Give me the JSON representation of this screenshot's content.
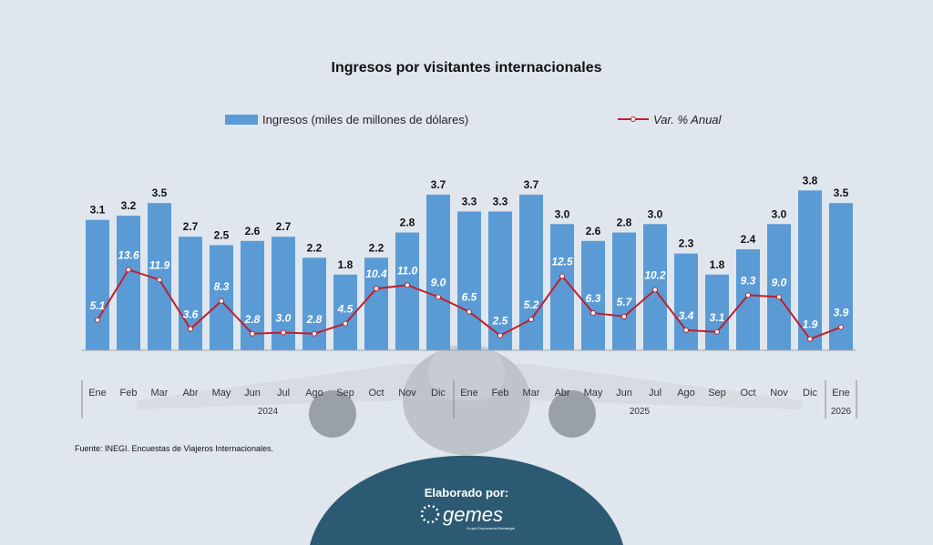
{
  "chart_data": {
    "type": "bar",
    "title": "Ingresos por visitantes internacionales",
    "categories": [
      "Ene",
      "Feb",
      "Mar",
      "Abr",
      "May",
      "Jun",
      "Jul",
      "Ago",
      "Sep",
      "Oct",
      "Nov",
      "Dic",
      "Ene",
      "Feb",
      "Mar",
      "Abr",
      "May",
      "Jun",
      "Jul",
      "Ago",
      "Sep",
      "Oct",
      "Nov",
      "Dic",
      "Ene"
    ],
    "years": [
      {
        "label": "2024",
        "count": 12
      },
      {
        "label": "2025",
        "count": 12
      },
      {
        "label": "2026",
        "count": 1
      }
    ],
    "series": [
      {
        "name": "Ingresos (miles de millones de dólares)",
        "type": "bar",
        "color": "#5b9bd5",
        "values": [
          3.1,
          3.2,
          3.5,
          2.7,
          2.5,
          2.6,
          2.7,
          2.2,
          1.8,
          2.2,
          2.8,
          3.7,
          3.3,
          3.3,
          3.7,
          3.0,
          2.6,
          2.8,
          3.0,
          2.3,
          1.8,
          2.4,
          3.0,
          3.8,
          3.5
        ]
      },
      {
        "name": "Var. % Anual",
        "type": "line",
        "color": "#c0202a",
        "values": [
          5.1,
          13.6,
          11.9,
          3.6,
          8.3,
          2.8,
          3.0,
          2.8,
          4.5,
          10.4,
          11.0,
          9.0,
          6.5,
          2.5,
          5.2,
          12.5,
          6.3,
          5.7,
          10.2,
          3.4,
          3.1,
          9.3,
          9.0,
          1.9,
          3.9
        ]
      }
    ],
    "bar_ylim": [
      0,
      4.65
    ],
    "line_ylim": [
      0,
      33
    ],
    "legend": "top",
    "grid": false
  },
  "source": "Fuente: INEGI. Encuestas de Viajeros Internacionales.",
  "footer": {
    "label": "Elaborado por:",
    "logo_text": "gemes",
    "logo_subtitle": "Grupo Empresarial Estrategia"
  }
}
